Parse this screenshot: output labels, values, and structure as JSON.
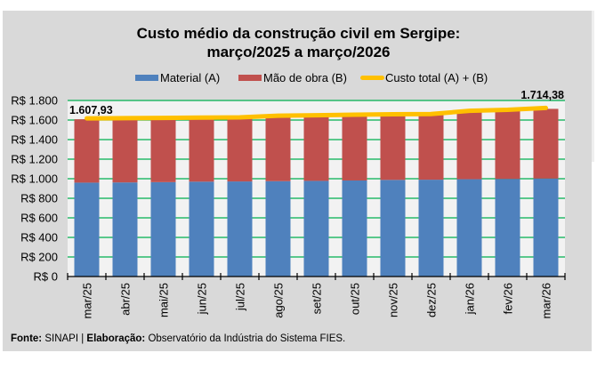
{
  "chart_data": {
    "type": "bar",
    "stacked": true,
    "title_line1": "Custo médio da construção civil em Sergipe:",
    "title_line2": "março/2025 a março/2026",
    "xlabel": "",
    "ylabel": "",
    "ylim": [
      0,
      1800
    ],
    "yticks": [
      0,
      200,
      400,
      600,
      800,
      1000,
      1200,
      1400,
      1600,
      1800
    ],
    "ytick_labels": [
      "R$ 0",
      "R$ 200",
      "R$ 400",
      "R$ 600",
      "R$ 800",
      "R$ 1.000",
      "R$ 1.200",
      "R$ 1.400",
      "R$ 1.600",
      "R$ 1.800"
    ],
    "grid": true,
    "legend_position": "top",
    "categories": [
      "mar/25",
      "abr/25",
      "mai/25",
      "jun/25",
      "jul/25",
      "ago/25",
      "set/25",
      "out/25",
      "nov/25",
      "dez/25",
      "jan/26",
      "fev/26",
      "mar/26"
    ],
    "series": [
      {
        "name": "Material (A)",
        "kind": "bar",
        "color": "#4f81bd",
        "values": [
          960,
          962,
          965,
          970,
          972,
          975,
          978,
          982,
          988,
          990,
          995,
          998,
          1002
        ]
      },
      {
        "name": "Mão de obra (B)",
        "kind": "bar",
        "color": "#c0504d",
        "values": [
          647.93,
          648,
          647,
          646,
          646,
          660,
          662,
          663,
          662,
          662,
          690,
          697,
          712.38
        ]
      },
      {
        "name": "Custo total (A) + (B)",
        "kind": "line",
        "color": "#ffc000",
        "values": [
          1607.93,
          1610,
          1612,
          1616,
          1618,
          1635,
          1640,
          1645,
          1650,
          1652,
          1685,
          1695,
          1714.38
        ]
      }
    ],
    "annotations": [
      {
        "category": "mar/25",
        "text": "1.607,93"
      },
      {
        "category": "mar/26",
        "text": "1.714,38"
      }
    ]
  },
  "legend": {
    "material": "Material (A)",
    "labor": "Mão de obra (B)",
    "total": "Custo total (A) + (B)"
  },
  "source": {
    "fonte_label": "Fonte:",
    "fonte_value": " SINAPI | ",
    "elab_label": "Elaboração:",
    "elab_value": " Observatório da Indústria do Sistema FIES."
  },
  "colors": {
    "material": "#4f81bd",
    "labor": "#c0504d",
    "total": "#ffc000",
    "grid": "#00b050",
    "plot_bg": "#f2f2f2",
    "chart_bg": "#d9d9d9"
  }
}
